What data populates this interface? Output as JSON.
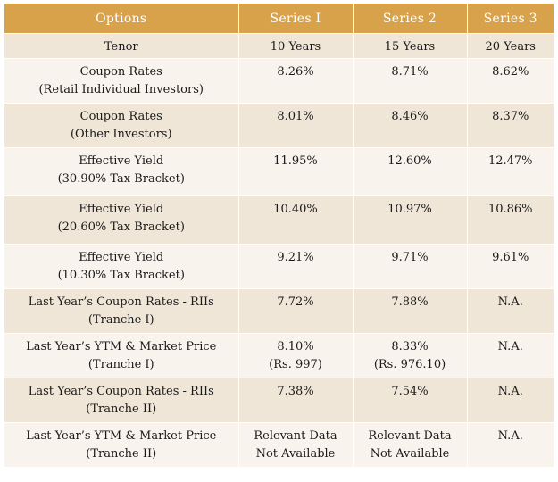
{
  "header": [
    "Options",
    "Series I",
    "Series 2",
    "Series 3"
  ],
  "rows": [
    {
      "label": [
        "Tenor"
      ],
      "s1": [
        "10 Years"
      ],
      "s2": [
        "15 Years"
      ],
      "s3": [
        "20 Years"
      ]
    },
    {
      "label": [
        "Coupon Rates",
        "(Retail Individual Investors)"
      ],
      "s1": [
        "8.26%"
      ],
      "s2": [
        "8.71%"
      ],
      "s3": [
        "8.62%"
      ]
    },
    {
      "label": [
        "Coupon Rates",
        "(Other Investors)"
      ],
      "s1": [
        "8.01%"
      ],
      "s2": [
        "8.46%"
      ],
      "s3": [
        "8.37%"
      ]
    },
    {
      "label": [
        "Effective Yield",
        "(30.90% Tax Bracket)"
      ],
      "s1": [
        "11.95%"
      ],
      "s2": [
        "12.60%"
      ],
      "s3": [
        "12.47%"
      ]
    },
    {
      "label": [
        "Effective Yield",
        "(20.60% Tax Bracket)"
      ],
      "s1": [
        "10.40%"
      ],
      "s2": [
        "10.97%"
      ],
      "s3": [
        "10.86%"
      ]
    },
    {
      "label": [
        "Effective Yield",
        "(10.30% Tax Bracket)"
      ],
      "s1": [
        "9.21%"
      ],
      "s2": [
        "9.71%"
      ],
      "s3": [
        "9.61%"
      ]
    },
    {
      "label": [
        "Last Year’s Coupon Rates - RIIs",
        "(Tranche I)"
      ],
      "s1": [
        "7.72%"
      ],
      "s2": [
        "7.88%"
      ],
      "s3": [
        "N.A."
      ]
    },
    {
      "label": [
        "Last Year’s YTM & Market Price",
        "(Tranche I)"
      ],
      "s1": [
        "8.10%",
        "(Rs. 997)"
      ],
      "s2": [
        "8.33%",
        "(Rs. 976.10)"
      ],
      "s3": [
        "N.A."
      ]
    },
    {
      "label": [
        "Last Year’s Coupon Rates - RIIs",
        "(Tranche II)"
      ],
      "s1": [
        "7.38%"
      ],
      "s2": [
        "7.54%"
      ],
      "s3": [
        "N.A."
      ]
    },
    {
      "label": [
        "Last Year’s YTM & Market Price",
        "(Tranche II)"
      ],
      "s1": [
        "Relevant Data",
        "Not Available"
      ],
      "s2": [
        "Relevant Data",
        "Not Available"
      ],
      "s3": [
        "N.A."
      ]
    }
  ]
}
